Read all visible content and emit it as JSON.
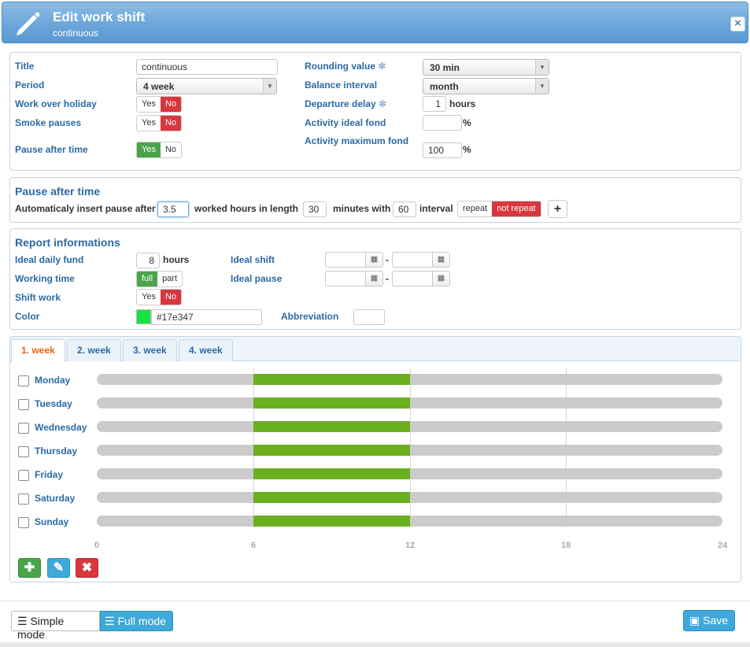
{
  "window": {
    "title": "Edit work shift",
    "subtitle": "continuous",
    "close_icon": "close-icon"
  },
  "general": {
    "title_label": "Title",
    "title_value": "continuous",
    "period_label": "Period",
    "period_value": "4 week",
    "holiday_label": "Work over holiday",
    "holiday_yes": "Yes",
    "holiday_no": "No",
    "smoke_label": "Smoke pauses",
    "smoke_yes": "Yes",
    "smoke_no": "No",
    "pause_label": "Pause after time",
    "pause_yes": "Yes",
    "pause_no": "No",
    "rounding_label": "Rounding value",
    "rounding_value": "30 min",
    "balance_label": "Balance interval",
    "balance_value": "month",
    "departure_label": "Departure delay",
    "departure_value": "1",
    "departure_unit": "hours",
    "ideal_fond_label": "Activity ideal fond",
    "ideal_fond_value": "",
    "ideal_fond_unit": "%",
    "max_fond_label": "Activity maximum fond",
    "max_fond_value": "100",
    "max_fond_unit": "%"
  },
  "pause_section": {
    "heading": "Pause after time",
    "text1": "Automaticaly insert pause after",
    "after_value": "3.5",
    "text2": "worked hours in length",
    "length_value": "30",
    "text3": "minutes with",
    "with_value": "60",
    "text4": "interval",
    "repeat": "repeat",
    "not_repeat": "not repeat",
    "add_symbol": "+"
  },
  "report": {
    "heading": "Report informations",
    "daily_label": "Ideal daily fund",
    "daily_value": "8",
    "daily_unit": "hours",
    "working_label": "Working time",
    "working_full": "full",
    "working_part": "part",
    "shiftwork_label": "Shift work",
    "shiftwork_yes": "Yes",
    "shiftwork_no": "No",
    "color_label": "Color",
    "color_value": "#17e347",
    "ideal_shift_label": "Ideal shift",
    "ideal_pause_label": "Ideal pause",
    "dash": "-",
    "abbrev_label": "Abbreviation",
    "abbrev_value": ""
  },
  "tabs": [
    "1. week",
    "2. week",
    "3. week",
    "4. week"
  ],
  "schedule": {
    "days": [
      "Monday",
      "Tuesday",
      "Wednesday",
      "Thursday",
      "Friday",
      "Saturday",
      "Sunday"
    ],
    "range_hours": [
      0,
      24
    ],
    "shift_start_hour": 6,
    "shift_end_hour": 12,
    "ticks": [
      "0",
      "6",
      "12",
      "18",
      "24"
    ],
    "shift_color": "#6aaf1e",
    "track_color": "#cbcbcb"
  },
  "footer": {
    "simple_mode": "Simple mode",
    "full_mode": "Full mode",
    "save": "Save"
  }
}
